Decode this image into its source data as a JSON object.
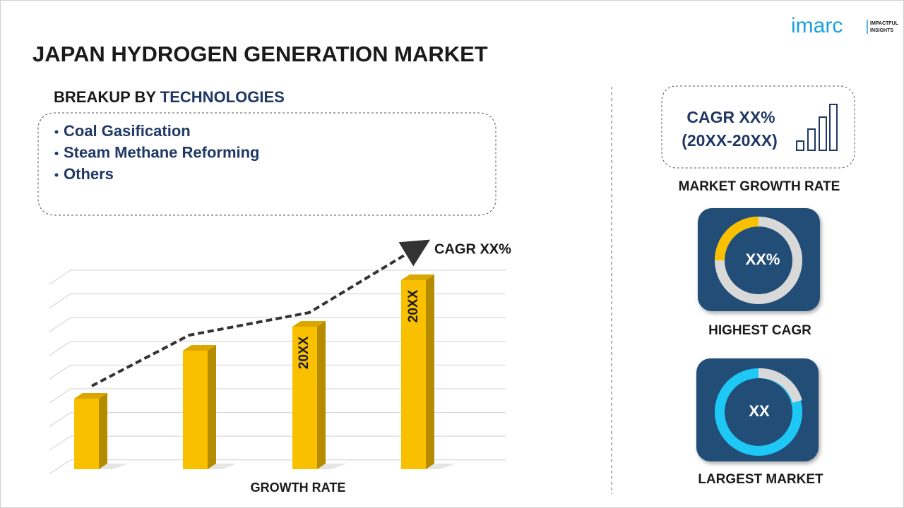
{
  "logo": {
    "name": "imarc",
    "tagline": [
      "IMPACTFUL",
      "INSIGHTS"
    ]
  },
  "title": "JAPAN HYDROGEN GENERATION MARKET",
  "breakup": {
    "label": "BREAKUP BY",
    "highlight": "TECHNOLOGIES",
    "items": [
      "Coal Gasification",
      "Steam Methane Reforming",
      "Others"
    ]
  },
  "growth_chart": {
    "cagr_label": "CAGR XX%",
    "bar_labels": [
      "20XX",
      "20XX"
    ],
    "axis_label": "GROWTH RATE"
  },
  "market_growth": {
    "cagr": "CAGR XX%",
    "period": "(20XX-20XX)",
    "label": "MARKET GROWTH RATE"
  },
  "highest_cagr": {
    "value": "XX%",
    "label": "HIGHEST CAGR"
  },
  "largest_market": {
    "value": "XX",
    "label": "LARGEST MARKET"
  }
}
